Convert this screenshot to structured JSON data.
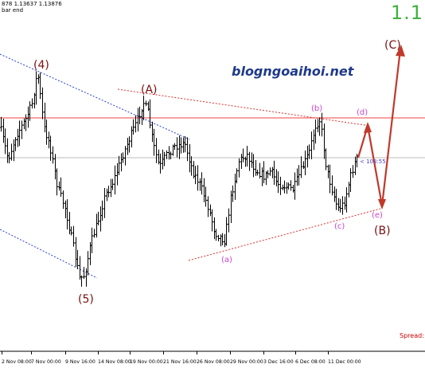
{
  "header": {
    "quote_line": "878 1.13637 1.13876",
    "mode_line": "bar end"
  },
  "symbol_price": "1.1",
  "watermark": "blogngoaihoi.net",
  "spread_label": "Spread:",
  "price_tag": "< 103:55",
  "chart_data": {
    "type": "ohlc-bar",
    "x_tick_labels": [
      "2 Nov 08:00",
      "7 Nov 00:00",
      "9 Nov 16:00",
      "14 Nov 08:00",
      "19 Nov 00:00",
      "21 Nov 16:00",
      "26 Nov 08:00",
      "29 Nov 00:00",
      "3 Dec 16:00",
      "6 Dec 08:00",
      "11 Dec 00:00"
    ],
    "grid": false,
    "wave_labels": [
      {
        "text": "(4)",
        "color": "#7a1010"
      },
      {
        "text": "(5)",
        "color": "#7a1010"
      },
      {
        "text": "(A)",
        "color": "#7a1010"
      },
      {
        "text": "(a)",
        "color": "#cc44cc"
      },
      {
        "text": "(b)",
        "color": "#cc44cc"
      },
      {
        "text": "(c)",
        "color": "#cc44cc"
      },
      {
        "text": "(d)",
        "color": "#cc44cc"
      },
      {
        "text": "(e)",
        "color": "#cc44cc"
      },
      {
        "text": "(B)",
        "color": "#7a1010"
      },
      {
        "text": "(C)",
        "color": "#7a1010"
      }
    ],
    "colors": {
      "bars": "#000000",
      "horizontal_line": "#f04040",
      "price_line": "#bbbbbb",
      "trend_blue": "#2a3fd0",
      "trend_red": "#e03030",
      "projection": "#c0392b",
      "tag": "#4444cc"
    }
  }
}
